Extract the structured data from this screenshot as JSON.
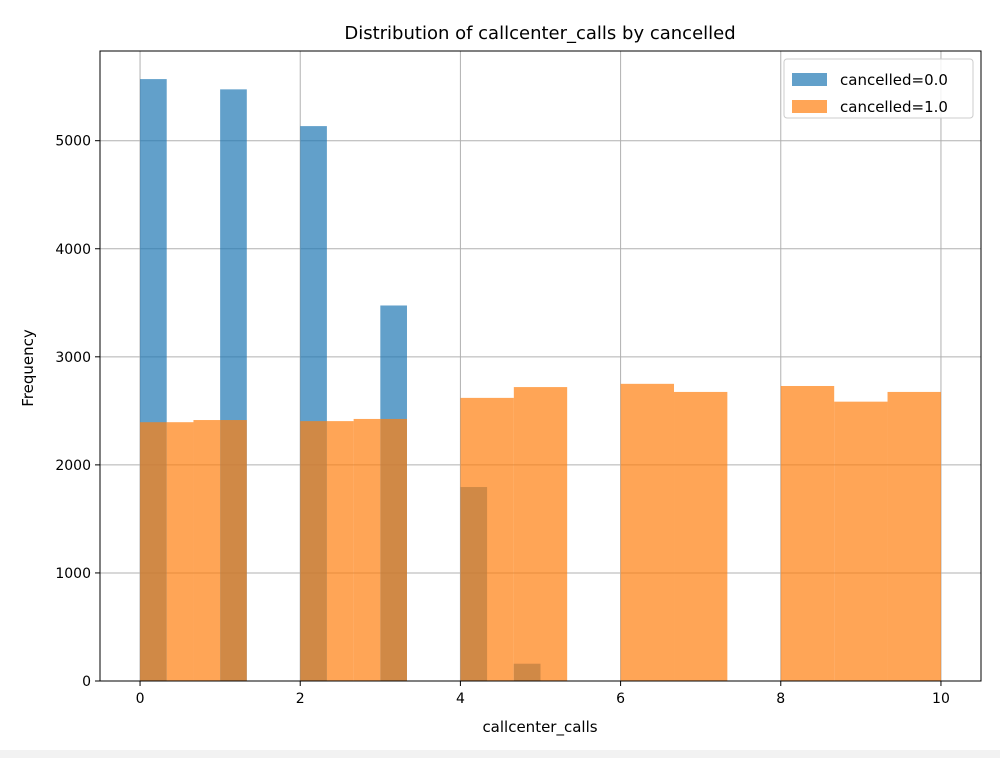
{
  "chart_data": {
    "type": "bar",
    "title": "Distribution of callcenter_calls by cancelled",
    "xlabel": "callcenter_calls",
    "ylabel": "Frequency",
    "xlim": [
      -0.5,
      10.5
    ],
    "ylim": [
      0,
      5830
    ],
    "xticks": [
      0,
      2,
      4,
      6,
      8,
      10
    ],
    "yticks": [
      0,
      1000,
      2000,
      3000,
      4000,
      5000
    ],
    "grid": true,
    "legend_position": "top-right",
    "series": [
      {
        "name": "cancelled=0.0",
        "color": "#1f77b4",
        "opacity": 0.7,
        "bins": [
          {
            "x0": 0.0,
            "x1": 0.333,
            "value": 5570
          },
          {
            "x0": 1.0,
            "x1": 1.333,
            "value": 5475
          },
          {
            "x0": 2.0,
            "x1": 2.333,
            "value": 5135
          },
          {
            "x0": 3.0,
            "x1": 3.333,
            "value": 3475
          },
          {
            "x0": 4.0,
            "x1": 4.333,
            "value": 1795
          },
          {
            "x0": 4.667,
            "x1": 5.0,
            "value": 160
          }
        ]
      },
      {
        "name": "cancelled=1.0",
        "color": "#ff7f0e",
        "opacity": 0.7,
        "bins": [
          {
            "x0": 0.0,
            "x1": 0.333,
            "value": 2395
          },
          {
            "x0": 0.333,
            "x1": 0.667,
            "value": 2395
          },
          {
            "x0": 0.667,
            "x1": 1.0,
            "value": 2415
          },
          {
            "x0": 1.0,
            "x1": 1.333,
            "value": 2415
          },
          {
            "x0": 2.0,
            "x1": 2.333,
            "value": 2405
          },
          {
            "x0": 2.333,
            "x1": 2.667,
            "value": 2405
          },
          {
            "x0": 2.667,
            "x1": 3.0,
            "value": 2425
          },
          {
            "x0": 3.0,
            "x1": 3.333,
            "value": 2425
          },
          {
            "x0": 4.0,
            "x1": 4.667,
            "value": 2620
          },
          {
            "x0": 4.667,
            "x1": 5.333,
            "value": 2720
          },
          {
            "x0": 6.0,
            "x1": 6.667,
            "value": 2750
          },
          {
            "x0": 6.667,
            "x1": 7.333,
            "value": 2675
          },
          {
            "x0": 8.0,
            "x1": 8.667,
            "value": 2730
          },
          {
            "x0": 8.667,
            "x1": 9.333,
            "value": 2585
          },
          {
            "x0": 9.333,
            "x1": 10.0,
            "value": 2675
          }
        ]
      }
    ]
  }
}
